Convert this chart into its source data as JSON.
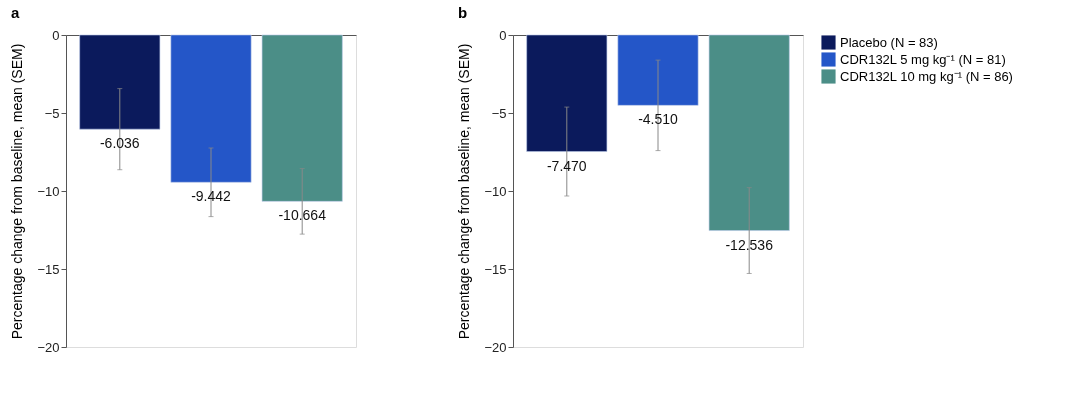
{
  "chart_data": [
    {
      "type": "bar",
      "title": "a",
      "ylabel": "Percentage change from baseline, mean (SEM)",
      "categories": [
        null
      ],
      "ylim": [
        -20,
        0
      ],
      "yticks": [
        0,
        -5,
        -10,
        -15,
        -20
      ],
      "grid": false,
      "legend": false,
      "series": [
        {
          "color": "#0b1a5c",
          "values": [
            -6.036
          ],
          "errors": [
            2.6
          ],
          "value_labels": [
            "-6.036"
          ]
        },
        {
          "color": "#2456c8",
          "values": [
            -9.442
          ],
          "errors": [
            2.2
          ],
          "value_labels": [
            "-9.442"
          ]
        },
        {
          "color": "#4b8e87",
          "values": [
            -10.664
          ],
          "errors": [
            2.1
          ],
          "value_labels": [
            "-10.664"
          ]
        }
      ]
    },
    {
      "type": "bar",
      "title": "b",
      "ylabel": "Percentage change from baseline, mean (SEM)",
      "categories": [
        null
      ],
      "ylim": [
        -20,
        0
      ],
      "yticks": [
        0,
        -5,
        -10,
        -15,
        -20
      ],
      "grid": false,
      "legend": "right",
      "series": [
        {
          "name": "Placebo (N = 83)",
          "color": "#0b1a5c",
          "values": [
            -7.47
          ],
          "errors": [
            2.85
          ],
          "value_labels": [
            "-7.470"
          ]
        },
        {
          "name": "CDR132L 5 mg kg⁻¹ (N = 81)",
          "color": "#2456c8",
          "values": [
            -4.51
          ],
          "errors": [
            2.9
          ],
          "value_labels": [
            "-4.510"
          ]
        },
        {
          "name": "CDR132L 10 mg kg⁻¹ (N = 86)",
          "color": "#4b8e87",
          "values": [
            -12.536
          ],
          "errors": [
            2.75
          ],
          "value_labels": [
            "-12.536"
          ]
        }
      ]
    }
  ]
}
